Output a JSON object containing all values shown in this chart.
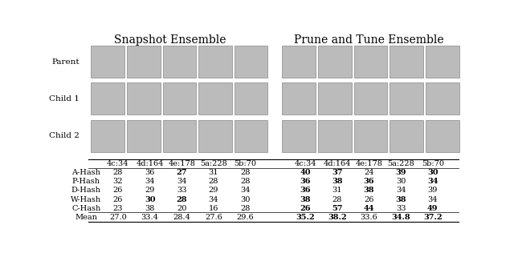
{
  "title_left": "Snapshot Ensemble",
  "title_right": "Prune and Tune Ensemble",
  "row_labels": [
    "Parent",
    "Child 1",
    "Child 2"
  ],
  "col_labels_snap": [
    "4c:34",
    "4d:164",
    "4e:178",
    "5a:228",
    "5b:70"
  ],
  "col_labels_pnt": [
    "4c:34",
    "4d:164",
    "4e:178",
    "5a:228",
    "5b:70"
  ],
  "hash_labels": [
    "A-Hash",
    "P-Hash",
    "D-Hash",
    "W-Hash",
    "C-Hash"
  ],
  "mean_label": "Mean",
  "snap_data": {
    "A-Hash": [
      28,
      36,
      27,
      31,
      28
    ],
    "P-Hash": [
      32,
      34,
      34,
      28,
      28
    ],
    "D-Hash": [
      26,
      29,
      33,
      29,
      34
    ],
    "W-Hash": [
      26,
      30,
      28,
      34,
      30
    ],
    "C-Hash": [
      23,
      38,
      20,
      16,
      28
    ]
  },
  "pnt_data": {
    "A-Hash": [
      40,
      37,
      24,
      39,
      30
    ],
    "P-Hash": [
      36,
      38,
      36,
      30,
      34
    ],
    "D-Hash": [
      36,
      31,
      38,
      34,
      39
    ],
    "W-Hash": [
      38,
      28,
      26,
      38,
      34
    ],
    "C-Hash": [
      26,
      57,
      44,
      33,
      49
    ]
  },
  "snap_mean": [
    27.0,
    33.4,
    28.4,
    27.6,
    29.6
  ],
  "pnt_mean": [
    35.2,
    38.2,
    33.6,
    34.8,
    37.2
  ],
  "snap_bold": {
    "A-Hash": [
      2
    ],
    "P-Hash": [],
    "D-Hash": [],
    "W-Hash": [
      1,
      2
    ],
    "C-Hash": []
  },
  "pnt_bold": {
    "A-Hash": [
      0,
      1,
      3,
      4
    ],
    "P-Hash": [
      0,
      1,
      2,
      4
    ],
    "D-Hash": [
      0,
      2
    ],
    "W-Hash": [
      0,
      3
    ],
    "C-Hash": [
      0,
      1,
      2,
      4
    ]
  },
  "pnt_mean_bold": [
    0,
    1,
    3,
    4
  ],
  "snap_mean_bold": [],
  "bg_color": "#ffffff",
  "font_size": 7,
  "title_font_size": 10
}
